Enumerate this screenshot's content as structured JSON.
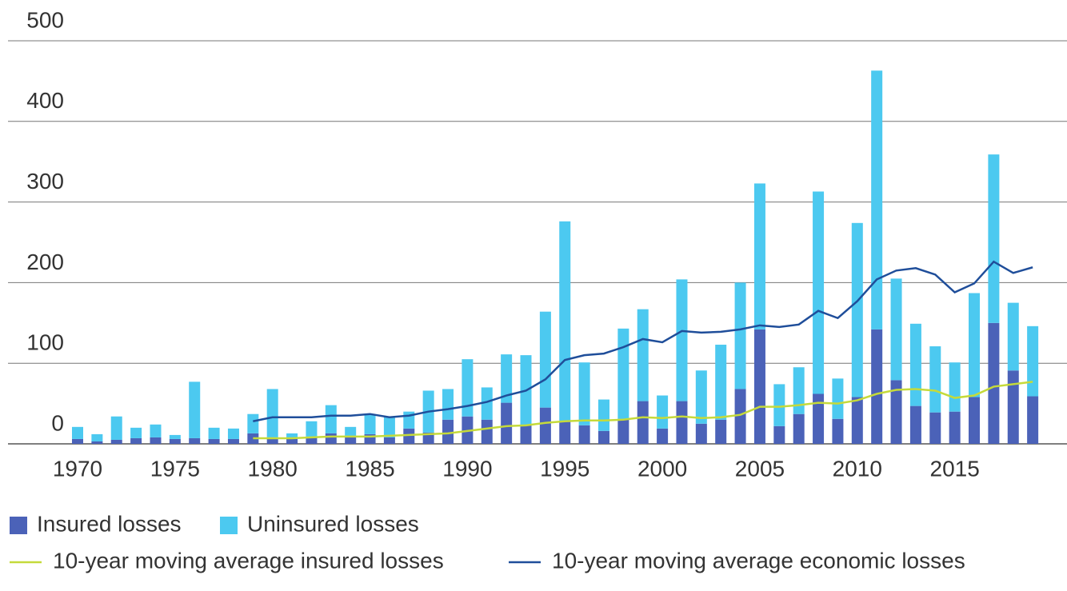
{
  "chart_data": {
    "type": "bar",
    "stacked": true,
    "categories": [
      "1970",
      null,
      null,
      null,
      null,
      "1975",
      null,
      null,
      null,
      null,
      "1980",
      null,
      null,
      null,
      null,
      "1985",
      null,
      null,
      null,
      null,
      "1990",
      null,
      null,
      null,
      null,
      "1995",
      null,
      null,
      null,
      null,
      "2000",
      null,
      null,
      null,
      null,
      "2005",
      null,
      null,
      null,
      null,
      "2010",
      null,
      null,
      null,
      null,
      "2015",
      null,
      null,
      null,
      null
    ],
    "series": [
      {
        "name": "Insured losses",
        "type": "bar",
        "color": "#4b62b8",
        "values": [
          6,
          3,
          5,
          7,
          8,
          6,
          7,
          6,
          6,
          13,
          8,
          6,
          9,
          13,
          8,
          12,
          8,
          19,
          14,
          30,
          34,
          30,
          51,
          23,
          45,
          28,
          23,
          16,
          31,
          53,
          19,
          53,
          25,
          30,
          68,
          142,
          22,
          37,
          62,
          31,
          58,
          142,
          79,
          47,
          39,
          40,
          58,
          150,
          91,
          59
        ]
      },
      {
        "name": "Uninsured losses",
        "type": "bar",
        "color": "#4cc9f0",
        "values": [
          15,
          9,
          29,
          13,
          16,
          5,
          70,
          14,
          13,
          24,
          60,
          7,
          19,
          35,
          13,
          24,
          26,
          21,
          52,
          38,
          71,
          40,
          60,
          87,
          119,
          248,
          78,
          39,
          112,
          114,
          41,
          151,
          66,
          93,
          132,
          181,
          52,
          58,
          251,
          50,
          216,
          321,
          126,
          102,
          82,
          61,
          129,
          209,
          84,
          87
        ]
      },
      {
        "name": "10-year moving average insured losses",
        "type": "line",
        "color": "#c5da3a",
        "values": [
          null,
          null,
          null,
          null,
          null,
          null,
          null,
          null,
          null,
          7,
          7,
          7,
          8,
          9,
          9,
          9,
          10,
          11,
          12,
          13,
          16,
          19,
          22,
          23,
          26,
          28,
          29,
          29,
          30,
          33,
          32,
          34,
          32,
          33,
          36,
          46,
          46,
          48,
          51,
          50,
          54,
          62,
          67,
          68,
          66,
          57,
          60,
          71,
          74,
          77
        ]
      },
      {
        "name": "10-year moving average economic losses",
        "type": "line",
        "color": "#1f4e9a",
        "values": [
          null,
          null,
          null,
          null,
          null,
          null,
          null,
          null,
          null,
          28,
          33,
          33,
          33,
          35,
          35,
          37,
          33,
          35,
          40,
          43,
          47,
          52,
          60,
          66,
          80,
          104,
          110,
          112,
          120,
          130,
          126,
          140,
          138,
          139,
          142,
          147,
          145,
          148,
          165,
          156,
          177,
          204,
          215,
          218,
          210,
          188,
          199,
          226,
          212,
          219
        ]
      }
    ],
    "ylim": [
      0,
      500
    ],
    "yticks": [
      0,
      100,
      200,
      300,
      400,
      500
    ],
    "grid": true
  }
}
